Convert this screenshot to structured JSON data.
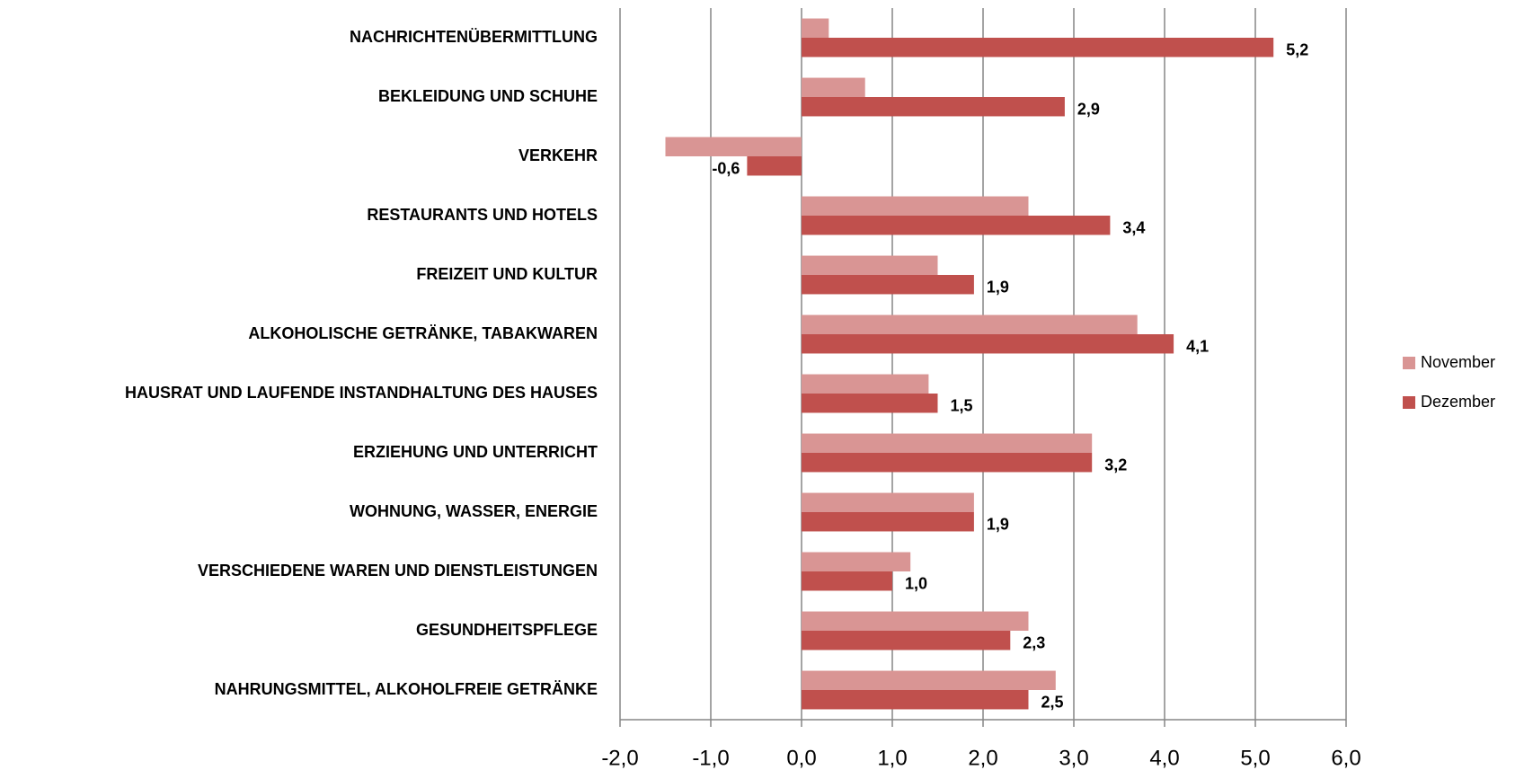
{
  "chart_data": {
    "type": "hbar",
    "categories": [
      "NACHRICHTENÜBERMITTLUNG",
      "BEKLEIDUNG UND SCHUHE",
      "VERKEHR",
      "RESTAURANTS UND HOTELS",
      "FREIZEIT UND KULTUR",
      "ALKOHOLISCHE GETRÄNKE, TABAKWAREN",
      "HAUSRAT UND LAUFENDE INSTANDHALTUNG DES HAUSES",
      "ERZIEHUNG UND UNTERRICHT",
      "WOHNUNG, WASSER, ENERGIE",
      "VERSCHIEDENE WAREN UND DIENSTLEISTUNGEN",
      "GESUNDHEITSPFLEGE",
      "NAHRUNGSMITTEL, ALKOHOLFREIE GETRÄNKE"
    ],
    "series": [
      {
        "name": "November",
        "color": "#d99594",
        "values": [
          0.3,
          0.7,
          -1.5,
          2.5,
          1.5,
          3.7,
          1.4,
          3.2,
          1.9,
          1.2,
          2.5,
          2.8
        ]
      },
      {
        "name": "Dezember",
        "color": "#c0504d",
        "values": [
          5.2,
          2.9,
          -0.6,
          3.4,
          1.9,
          4.1,
          1.5,
          3.2,
          1.9,
          1.0,
          2.3,
          2.5
        ],
        "value_labels": [
          "5,2",
          "2,9",
          "-0,6",
          "3,4",
          "1,9",
          "4,1",
          "1,5",
          "3,2",
          "1,9",
          "1,0",
          "2,3",
          "2,5"
        ]
      }
    ],
    "xlim": [
      -2,
      6
    ],
    "xticks": [
      {
        "value": -2,
        "label": "-2,0"
      },
      {
        "value": -1,
        "label": "-1,0"
      },
      {
        "value": 0,
        "label": "0,0"
      },
      {
        "value": 1,
        "label": "1,0"
      },
      {
        "value": 2,
        "label": "2,0"
      },
      {
        "value": 3,
        "label": "3,0"
      },
      {
        "value": 4,
        "label": "4,0"
      },
      {
        "value": 5,
        "label": "5,0"
      },
      {
        "value": 6,
        "label": "6,0"
      }
    ],
    "grid": true,
    "legend": "right"
  }
}
